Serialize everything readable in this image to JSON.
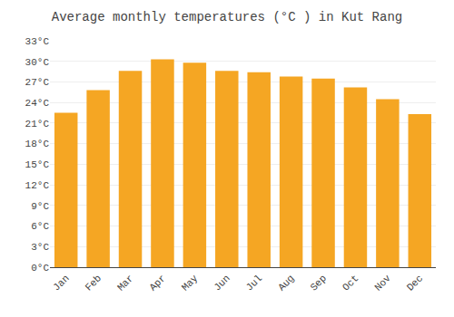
{
  "chart_data": {
    "type": "bar",
    "title": "Average monthly temperatures (°C ) in Kut Rang",
    "categories": [
      "Jan",
      "Feb",
      "Mar",
      "Apr",
      "May",
      "Jun",
      "Jul",
      "Aug",
      "Sep",
      "Oct",
      "Nov",
      "Dec"
    ],
    "values": [
      22.5,
      25.8,
      28.6,
      30.3,
      29.8,
      28.6,
      28.4,
      27.8,
      27.5,
      26.2,
      24.5,
      22.3
    ],
    "color": "#F5A623",
    "ylim": [
      0,
      33
    ],
    "yticks": [
      {
        "value": 0,
        "label": "0°C"
      },
      {
        "value": 3,
        "label": "3°C"
      },
      {
        "value": 6,
        "label": "6°C"
      },
      {
        "value": 9,
        "label": "9°C"
      },
      {
        "value": 12,
        "label": "12°C"
      },
      {
        "value": 15,
        "label": "15°C"
      },
      {
        "value": 18,
        "label": "18°C"
      },
      {
        "value": 21,
        "label": "21°C"
      },
      {
        "value": 24,
        "label": "24°C"
      },
      {
        "value": 27,
        "label": "27°C"
      },
      {
        "value": 30,
        "label": "30°C"
      },
      {
        "value": 33,
        "label": "33°C"
      }
    ],
    "grid": true
  }
}
